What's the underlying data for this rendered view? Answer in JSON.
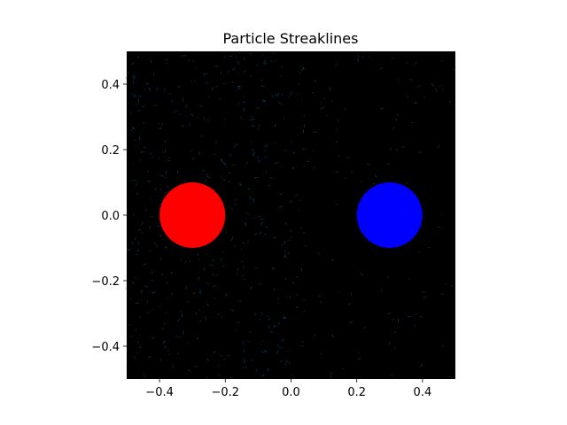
{
  "chart_data": {
    "type": "scatter",
    "title": "Particle Streaklines",
    "xlabel": "",
    "ylabel": "",
    "xlim": [
      -0.5,
      0.5
    ],
    "ylim": [
      -0.5,
      0.5
    ],
    "background": "#000000",
    "streak_color": "#1f77b4",
    "x_ticks": [
      -0.4,
      -0.2,
      0.0,
      0.2,
      0.4
    ],
    "y_ticks": [
      -0.4,
      -0.2,
      0.0,
      0.2,
      0.4
    ],
    "x_tick_labels": [
      "−0.4",
      "−0.2",
      "0.0",
      "0.2",
      "0.4"
    ],
    "y_tick_labels": [
      "−0.4",
      "−0.2",
      "0.0",
      "0.2",
      "0.4"
    ],
    "circles": [
      {
        "x": -0.3,
        "y": 0.0,
        "r": 0.1,
        "color": "#ff0000"
      },
      {
        "x": 0.3,
        "y": 0.0,
        "r": 0.1,
        "color": "#0000ff"
      }
    ]
  }
}
